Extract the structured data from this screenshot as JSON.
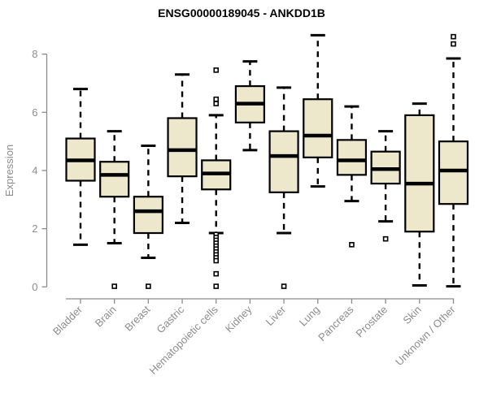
{
  "header": {
    "title": "ENSG00000189045 - ANKDD1B"
  },
  "chart_data": {
    "type": "boxplot",
    "title": "ENSG00000189045 - ANKDD1B",
    "xlabel": "",
    "ylabel": "Expression",
    "ylim": [
      0,
      8.7
    ],
    "yticks": [
      0,
      2,
      4,
      6,
      8
    ],
    "grid": false,
    "legend": "none",
    "categories": [
      "Bladder",
      "Brain",
      "Breast",
      "Gastric",
      "Hematopoietic cells",
      "Kidney",
      "Liver",
      "Lung",
      "Pancreas",
      "Prostate",
      "Skin",
      "Unknown / Other"
    ],
    "series": [
      {
        "name": "Bladder",
        "whisker_low": 1.45,
        "q1": 3.65,
        "median": 4.35,
        "q3": 5.1,
        "whisker_high": 6.8,
        "outliers": []
      },
      {
        "name": "Brain",
        "whisker_low": 1.5,
        "q1": 3.1,
        "median": 3.85,
        "q3": 4.3,
        "whisker_high": 5.35,
        "outliers": [
          0.02
        ]
      },
      {
        "name": "Breast",
        "whisker_low": 1.0,
        "q1": 1.85,
        "median": 2.6,
        "q3": 3.1,
        "whisker_high": 4.85,
        "outliers": [
          0.02
        ]
      },
      {
        "name": "Gastric",
        "whisker_low": 2.2,
        "q1": 3.8,
        "median": 4.7,
        "q3": 5.8,
        "whisker_high": 7.3,
        "outliers": []
      },
      {
        "name": "Hematopoietic cells",
        "whisker_low": 1.85,
        "q1": 3.35,
        "median": 3.9,
        "q3": 4.35,
        "whisker_high": 5.9,
        "outliers": [
          7.45,
          6.45,
          6.3,
          1.8,
          1.7,
          1.6,
          1.5,
          1.4,
          1.3,
          1.2,
          1.1,
          1.0,
          0.9,
          0.45,
          0.02
        ]
      },
      {
        "name": "Kidney",
        "whisker_low": 4.7,
        "q1": 5.65,
        "median": 6.3,
        "q3": 6.9,
        "whisker_high": 7.75,
        "outliers": []
      },
      {
        "name": "Liver",
        "whisker_low": 1.85,
        "q1": 3.25,
        "median": 4.5,
        "q3": 5.35,
        "whisker_high": 6.85,
        "outliers": [
          0.02
        ]
      },
      {
        "name": "Lung",
        "whisker_low": 3.45,
        "q1": 4.45,
        "median": 5.2,
        "q3": 6.45,
        "whisker_high": 8.65,
        "outliers": []
      },
      {
        "name": "Pancreas",
        "whisker_low": 2.95,
        "q1": 3.85,
        "median": 4.35,
        "q3": 5.05,
        "whisker_high": 6.2,
        "outliers": [
          1.45
        ]
      },
      {
        "name": "Prostate",
        "whisker_low": 2.25,
        "q1": 3.55,
        "median": 4.05,
        "q3": 4.65,
        "whisker_high": 5.35,
        "outliers": [
          1.65
        ]
      },
      {
        "name": "Skin",
        "whisker_low": 0.05,
        "q1": 1.9,
        "median": 3.55,
        "q3": 5.9,
        "whisker_high": 6.3,
        "outliers": []
      },
      {
        "name": "Unknown / Other",
        "whisker_low": 0.02,
        "q1": 2.85,
        "median": 4.0,
        "q3": 5.0,
        "whisker_high": 7.85,
        "outliers": [
          8.6,
          8.35
        ]
      }
    ],
    "colors": {
      "box_fill": "#EDE7CB",
      "box_stroke": "#000000",
      "median": "#000000",
      "whisker": "#000000",
      "outlier_fill": "#ffffff",
      "outlier_stroke": "#000000",
      "axis": "#8c8c8c",
      "tick_label": "#8c8c8c",
      "title": "#000000",
      "background": "#ffffff"
    }
  }
}
